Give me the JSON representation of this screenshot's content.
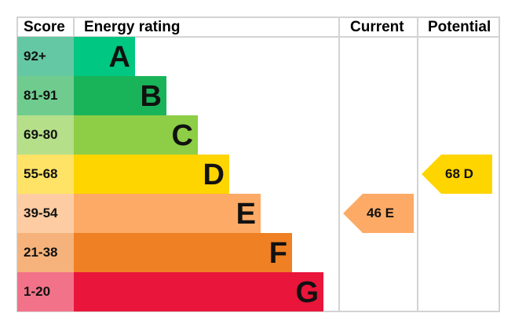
{
  "chart_data": {
    "type": "bar",
    "headers": {
      "score": "Score",
      "rating": "Energy rating",
      "current": "Current",
      "potential": "Potential"
    },
    "bands": [
      {
        "letter": "A",
        "range": "92+",
        "color": "#00c781",
        "score_color": "#65c8a4"
      },
      {
        "letter": "B",
        "range": "81-91",
        "color": "#19b459",
        "score_color": "#6fcc8e"
      },
      {
        "letter": "C",
        "range": "69-80",
        "color": "#8dce46",
        "score_color": "#b5df89"
      },
      {
        "letter": "D",
        "range": "55-68",
        "color": "#ffd500",
        "score_color": "#ffe366"
      },
      {
        "letter": "E",
        "range": "39-54",
        "color": "#fcaa65",
        "score_color": "#fdcca2"
      },
      {
        "letter": "F",
        "range": "21-38",
        "color": "#ef8023",
        "score_color": "#f5b37b"
      },
      {
        "letter": "G",
        "range": "1-20",
        "color": "#e9153b",
        "score_color": "#f27389"
      }
    ],
    "current": {
      "value": 46,
      "letter": "E",
      "label": "46  E",
      "color": "#fcaa65"
    },
    "potential": {
      "value": 68,
      "letter": "D",
      "label": "68  D",
      "color": "#ffd500"
    }
  }
}
